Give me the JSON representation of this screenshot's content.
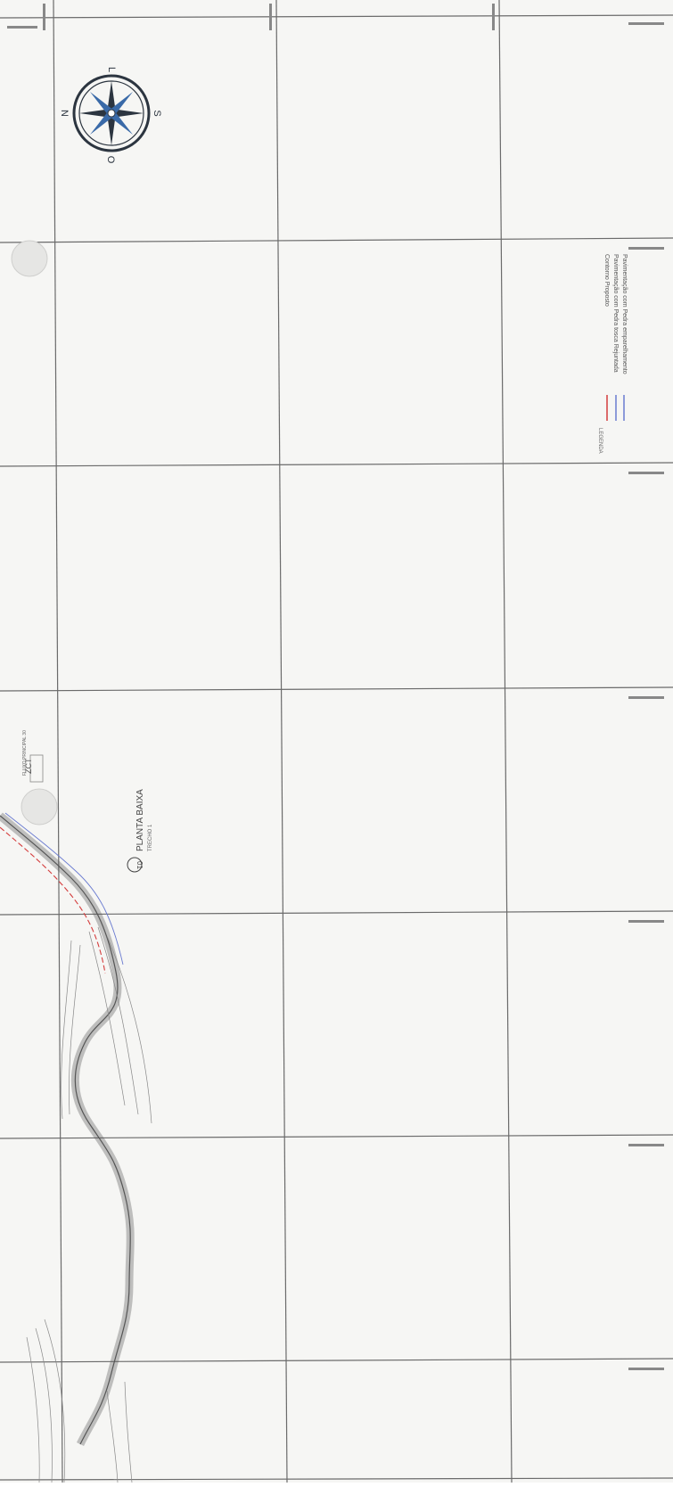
{
  "compass": {
    "letters": [
      "L",
      "N",
      "S",
      "O"
    ]
  },
  "legend": {
    "title": "LEGENDA",
    "items": [
      {
        "label": "Contorno Proposto",
        "color": "#d43c3c"
      },
      {
        "label": "Pavimentação com Pedra tosca Rejuntada",
        "color": "#6a7bd0"
      },
      {
        "label": "Pavimentação com Pedra emparelhamento",
        "color": "#6a7bd0"
      }
    ]
  },
  "title_block": {
    "number": "01",
    "title": "PLANTA BAIXA",
    "scale": "TRECHO 1"
  },
  "markers": {
    "ct_label": "ZCT",
    "ct_sublabel": "FLUXO PRINCIPAL 30"
  },
  "colors": {
    "grid": "#6b6b6b",
    "road": "#555555",
    "red_lines": "#d43c3c",
    "blue_lines": "#6a7bd0",
    "compass_dark": "#2c3540",
    "compass_blue": "#3a6aa8"
  }
}
